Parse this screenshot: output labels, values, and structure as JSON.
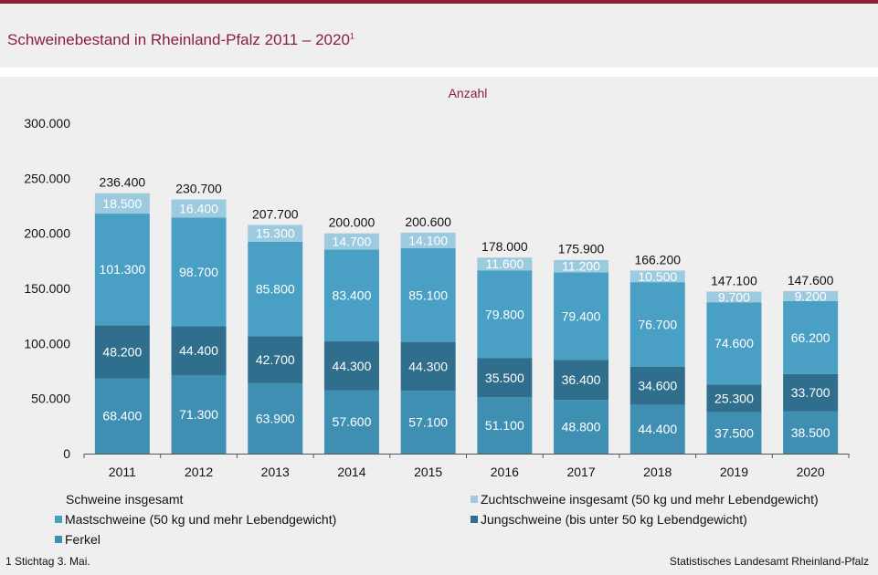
{
  "header": {
    "title": "Schweinebestand in Rheinland-Pfalz 2011 – 2020",
    "title_footnote_mark": "1"
  },
  "colors": {
    "accent": "#8b1f3a",
    "ferkel": "#3f8fb3",
    "jungschweine": "#2f6e8c",
    "mastschweine": "#4aa0c4",
    "zuchtschweine": "#9ccbe0"
  },
  "chart_data": {
    "type": "bar",
    "stacked": true,
    "unit_label": "Anzahl",
    "categories": [
      "2011",
      "2012",
      "2013",
      "2014",
      "2015",
      "2016",
      "2017",
      "2018",
      "2019",
      "2020"
    ],
    "ylim": [
      0,
      300000
    ],
    "y_ticks": [
      "0",
      "50.000",
      "100.000",
      "150.000",
      "200.000",
      "250.000",
      "300.000"
    ],
    "y_tick_values": [
      0,
      50000,
      100000,
      150000,
      200000,
      250000,
      300000
    ],
    "series": [
      {
        "name": "Ferkel",
        "color": "#3f8fb3",
        "values": [
          68400,
          71300,
          63900,
          57600,
          57100,
          51100,
          48800,
          44400,
          37500,
          38500
        ],
        "labels": [
          "68.400",
          "71.300",
          "63.900",
          "57.600",
          "57.100",
          "51.100",
          "48.800",
          "44.400",
          "37.500",
          "38.500"
        ]
      },
      {
        "name": "Jungschweine (bis unter 50 kg Lebendgewicht)",
        "color": "#2f6e8c",
        "values": [
          48200,
          44400,
          42700,
          44300,
          44300,
          35500,
          36400,
          34600,
          25300,
          33700
        ],
        "labels": [
          "48.200",
          "44.400",
          "42.700",
          "44.300",
          "44.300",
          "35.500",
          "36.400",
          "34.600",
          "25.300",
          "33.700"
        ]
      },
      {
        "name": "Mastschweine (50 kg und mehr Lebendgewicht)",
        "color": "#4aa0c4",
        "values": [
          101300,
          98700,
          85800,
          83400,
          85100,
          79800,
          79400,
          76700,
          74600,
          66200
        ],
        "labels": [
          "101.300",
          "98.700",
          "85.800",
          "83.400",
          "85.100",
          "79.800",
          "79.400",
          "76.700",
          "74.600",
          "66.200"
        ]
      },
      {
        "name": "Zuchtschweine insgesamt (50 kg und mehr Lebendgewicht)",
        "color": "#9ccbe0",
        "values": [
          18500,
          16400,
          15300,
          14700,
          14100,
          11600,
          11200,
          10500,
          9700,
          9200
        ],
        "labels": [
          "18.500",
          "16.400",
          "15.300",
          "14.700",
          "14.100",
          "11.600",
          "11.200",
          "10.500",
          "9.700",
          "9.200"
        ]
      }
    ],
    "totals": {
      "name": "Schweine insgesamt",
      "values": [
        236400,
        230700,
        207700,
        200000,
        200600,
        178000,
        175900,
        166200,
        147100,
        147600
      ],
      "labels": [
        "236.400",
        "230.700",
        "207.700",
        "200.000",
        "200.600",
        "178.000",
        "175.900",
        "166.200",
        "147.100",
        "147.600"
      ]
    }
  },
  "legend": {
    "total": "Schweine insgesamt",
    "zuchtschweine": "Zuchtschweine insgesamt (50 kg und mehr Lebendgewicht)",
    "mastschweine": "Mastschweine (50 kg und mehr Lebendgewicht)",
    "jungschweine": "Jungschweine (bis unter 50 kg Lebendgewicht)",
    "ferkel": "Ferkel"
  },
  "footer": {
    "footnote": "1 Stichtag 3. Mai.",
    "source": "Statistisches Landesamt Rheinland-Pfalz"
  }
}
